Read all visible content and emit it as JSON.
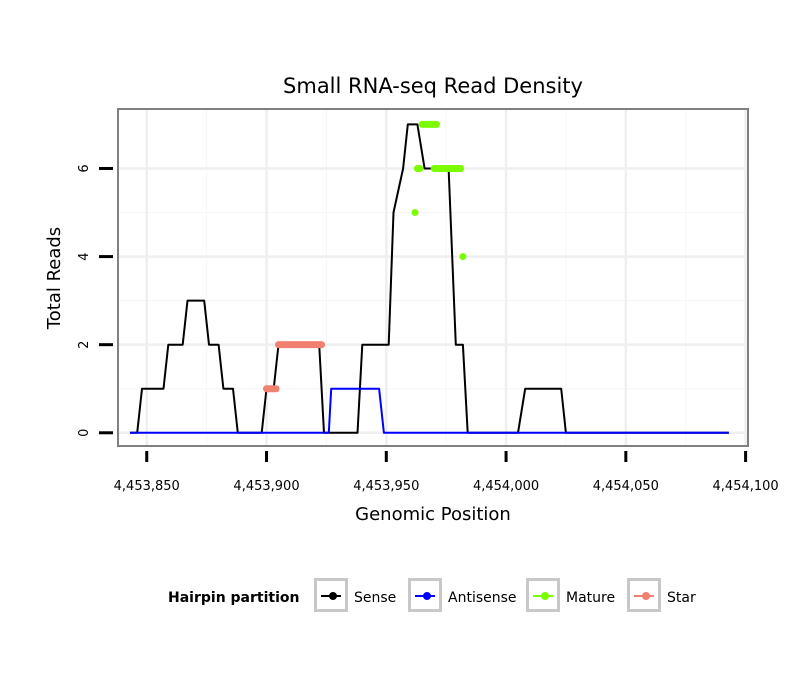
{
  "chart_data": {
    "type": "line",
    "title": "Small RNA-seq Read Density",
    "xlabel": "Genomic Position",
    "ylabel": "Total Reads",
    "xlim": [
      4453838,
      4454101
    ],
    "ylim": [
      -0.3,
      7.35
    ],
    "x_ticks": [
      4453850,
      4453900,
      4453950,
      4454000,
      4454050,
      4454100
    ],
    "x_tick_labels": [
      "4,453,850",
      "4,453,900",
      "4,453,950",
      "4,454,000",
      "4,454,050",
      "4,454,100"
    ],
    "y_ticks": [
      0,
      2,
      4,
      6
    ],
    "y_tick_labels": [
      "0",
      "2",
      "4",
      "6"
    ],
    "grid": true,
    "legend_title": "Hairpin partition",
    "legend_position": "bottom",
    "series": [
      {
        "name": "Sense",
        "color": "#000000",
        "x": [
          4453843,
          4453846,
          4453848,
          4453857,
          4453859,
          4453865,
          4453867,
          4453874,
          4453876,
          4453880,
          4453882,
          4453886,
          4453888,
          4453898,
          4453900,
          4453903,
          4453905,
          4453922,
          4453924,
          4453938,
          4453940,
          4453951,
          4453953,
          4453957,
          4453959,
          4453963,
          4453966,
          4453976,
          4453979,
          4453982,
          4453984,
          4454005,
          4454008,
          4454023,
          4454025,
          4454093
        ],
        "y": [
          0,
          0,
          1,
          1,
          2,
          2,
          3,
          3,
          2,
          2,
          1,
          1,
          0,
          0,
          1,
          1,
          2,
          2,
          0,
          0,
          2,
          2,
          5,
          6,
          7,
          7,
          6,
          6,
          2,
          2,
          0,
          0,
          1,
          1,
          0,
          0
        ]
      },
      {
        "name": "Antisense",
        "color": "#0000ff",
        "x": [
          4453843,
          4453926,
          4453927,
          4453947,
          4453949,
          4454093
        ],
        "y": [
          0,
          0,
          1,
          1,
          0,
          0
        ]
      },
      {
        "name": "Mature",
        "color": "#7cfc00",
        "segments": [
          {
            "x": [
              4453962,
              4453962
            ],
            "y": [
              5,
              5
            ]
          },
          {
            "x": [
              4453963,
              4453964
            ],
            "y": [
              6,
              6
            ]
          },
          {
            "x": [
              4453965,
              4453971
            ],
            "y": [
              7,
              7
            ]
          },
          {
            "x": [
              4453970,
              4453981
            ],
            "y": [
              6,
              6
            ]
          },
          {
            "x": [
              4453982,
              4453982
            ],
            "y": [
              4,
              4
            ]
          }
        ]
      },
      {
        "name": "Star",
        "color": "#f08070",
        "segments": [
          {
            "x": [
              4453900,
              4453904
            ],
            "y": [
              1,
              1
            ]
          },
          {
            "x": [
              4453905,
              4453923
            ],
            "y": [
              2,
              2
            ]
          }
        ]
      }
    ]
  }
}
